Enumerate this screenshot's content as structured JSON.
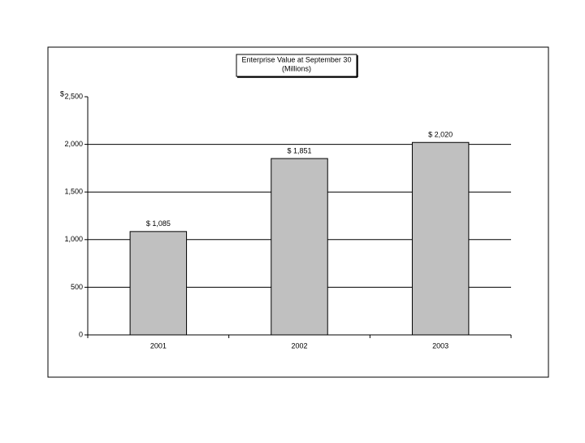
{
  "chart_data": {
    "type": "bar",
    "title": "Enterprise Value at September 30",
    "subtitle": "(Millions)",
    "ylabel": "$",
    "categories": [
      "2001",
      "2002",
      "2003"
    ],
    "values": [
      1085,
      1851,
      2020
    ],
    "value_labels": [
      "$ 1,085",
      "$ 1,851",
      "$ 2,020"
    ],
    "color": "#c0c0c0",
    "ylim": [
      0,
      2500
    ],
    "yticks": [
      0,
      500,
      {
        "value": 1000,
        "label": "1,000"
      },
      {
        "value": 1500,
        "label": "1,500"
      },
      {
        "value": 2000,
        "label": "2,000"
      },
      {
        "value": 2500,
        "label": "2,500"
      }
    ],
    "grid": true
  }
}
